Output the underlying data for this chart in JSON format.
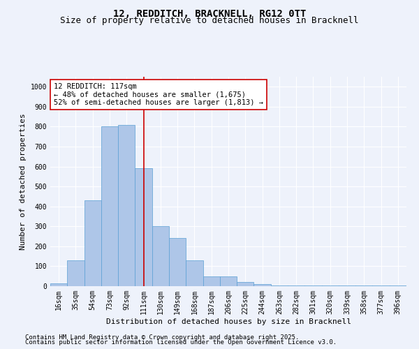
{
  "title_line1": "12, REDDITCH, BRACKNELL, RG12 0TT",
  "title_line2": "Size of property relative to detached houses in Bracknell",
  "xlabel": "Distribution of detached houses by size in Bracknell",
  "ylabel": "Number of detached properties",
  "categories": [
    "16sqm",
    "35sqm",
    "54sqm",
    "73sqm",
    "92sqm",
    "111sqm",
    "130sqm",
    "149sqm",
    "168sqm",
    "187sqm",
    "206sqm",
    "225sqm",
    "244sqm",
    "263sqm",
    "282sqm",
    "301sqm",
    "320sqm",
    "339sqm",
    "358sqm",
    "377sqm",
    "396sqm"
  ],
  "values": [
    15,
    130,
    430,
    800,
    810,
    590,
    300,
    240,
    130,
    50,
    50,
    20,
    10,
    5,
    5,
    5,
    3,
    2,
    2,
    2,
    2
  ],
  "bar_color": "#aec6e8",
  "bar_edge_color": "#5a9fd4",
  "highlight_index": 5,
  "highlight_line_color": "#cc0000",
  "annotation_text": "12 REDDITCH: 117sqm\n← 48% of detached houses are smaller (1,675)\n52% of semi-detached houses are larger (1,813) →",
  "annotation_box_color": "#ffffff",
  "annotation_box_edge_color": "#cc0000",
  "ylim": [
    0,
    1050
  ],
  "yticks": [
    0,
    100,
    200,
    300,
    400,
    500,
    600,
    700,
    800,
    900,
    1000
  ],
  "background_color": "#eef2fb",
  "footer_line1": "Contains HM Land Registry data © Crown copyright and database right 2025.",
  "footer_line2": "Contains public sector information licensed under the Open Government Licence v3.0.",
  "title_fontsize": 10,
  "subtitle_fontsize": 9,
  "axis_label_fontsize": 8,
  "tick_fontsize": 7,
  "annotation_fontsize": 7.5,
  "footer_fontsize": 6.5
}
